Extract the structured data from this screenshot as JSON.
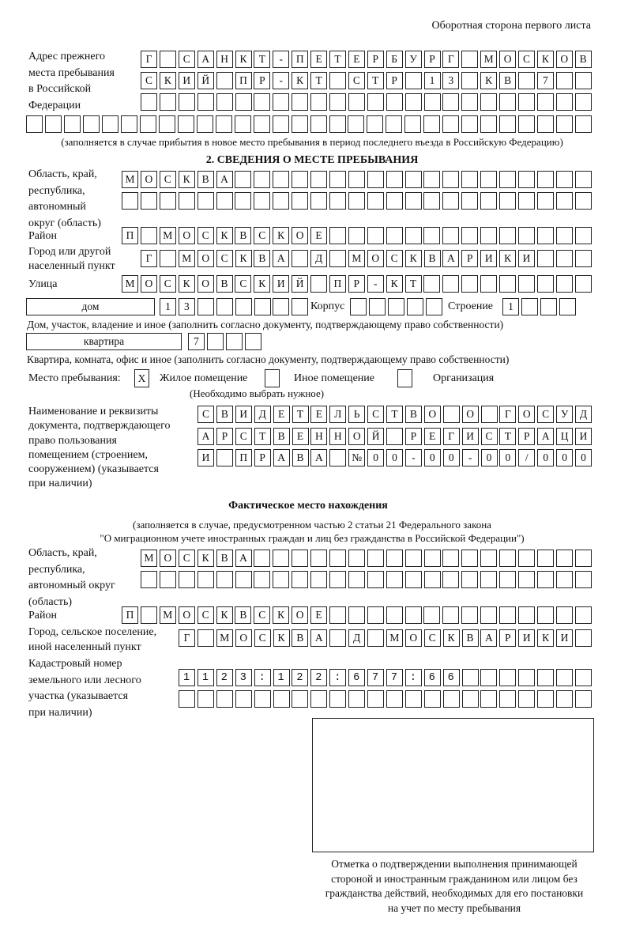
{
  "header": "Оборотная сторона первого листа",
  "prev_address": {
    "label": [
      "Адрес прежнего",
      "места пребывания",
      "в Российской",
      "Федерации"
    ],
    "rows": [
      "Г САНКТ-ПЕТЕРБУРГ МОСКОВ",
      "СКИЙ ПР-КТ СТР 13 КВ 7  ",
      "                        ",
      "                              "
    ],
    "note": "(заполняется в случае прибытия в новое место пребывания в период последнего въезда в Российскую Федерацию)"
  },
  "section2": {
    "title": "2. СВЕДЕНИЯ О МЕСТЕ ПРЕБЫВАНИЯ",
    "region_label": [
      "Область, край,",
      "республика,",
      "автономный",
      "округ (область)"
    ],
    "region_rows": [
      "МОСКВА                   ",
      "                         "
    ],
    "district_label": "Район",
    "district_row": "П МОСКВСКОЕ              ",
    "city_label": [
      "Город или другой",
      "населенный пункт"
    ],
    "city_row": "Г МОСКВА Д МОСКВАРИКИ   ",
    "street_label": "Улица",
    "street_row": "МОСКОВСКИЙ ПР-КТ         ",
    "house_type": "дом",
    "house_row": "13      ",
    "korpus_label": "Корпус",
    "korpus_row": "     ",
    "building_label": "Строение",
    "building_row": "1   ",
    "house_note": "Дом, участок, владение и иное (заполнить согласно документу, подтверждающему право собственности)",
    "flat_type": "квартира",
    "flat_row": "7   ",
    "flat_note": "Квартира, комната, офис и иное (заполнить согласно документу, подтверждающему право собственности)",
    "stay_label": "Место пребывания:",
    "stay_options": [
      {
        "label": "Жилое помещение",
        "mark": "X"
      },
      {
        "label": "Иное помещение",
        "mark": ""
      },
      {
        "label": "Организация",
        "mark": ""
      }
    ],
    "stay_note": "(Необходимо выбрать нужное)",
    "doc_label": [
      "Наименование и реквизиты",
      "документа, подтверждающего",
      "право пользования",
      "помещением (строением,",
      "сооружением) (указывается",
      "при наличии)"
    ],
    "doc_rows": [
      "СВИДЕТЕЛЬСТВО О ГОСУД",
      "АРСТВЕННОЙ РЕГИСТРАЦИ",
      "И ПРАВА №00-00-00/000"
    ]
  },
  "actual": {
    "title": "Фактическое место нахождения",
    "subtitle": [
      "(заполняется в случае, предусмотренном частью 2 статьи 21 Федерального закона",
      "\"О миграционном учете иностранных граждан и лиц без гражданства в Российской Федерации\")"
    ],
    "region_label": [
      "Область, край,",
      "республика,",
      "автономный округ",
      "(область)"
    ],
    "region_rows": [
      "МОСКВА                  ",
      "                        "
    ],
    "district_label": "Район",
    "district_row": "П МОСКВСКОЕ              ",
    "city_label": [
      "Город, сельское поселение,",
      "иной населенный пункт"
    ],
    "city_row": "Г МОСКВА Д МОСКВАРИКИ ",
    "cadastre_label": [
      "Кадастровый номер",
      "земельного или лесного",
      "участка (указывается",
      "при наличии)"
    ],
    "cadastre_rows": [
      "1123:122:677:66       ",
      "                      "
    ],
    "stamp_caption": [
      "Отметка о подтверждении выполнения принимающей",
      "стороной и иностранным гражданином или лицом без",
      "гражданства действий, необходимых для его постановки",
      "на учет по месту пребывания"
    ]
  }
}
